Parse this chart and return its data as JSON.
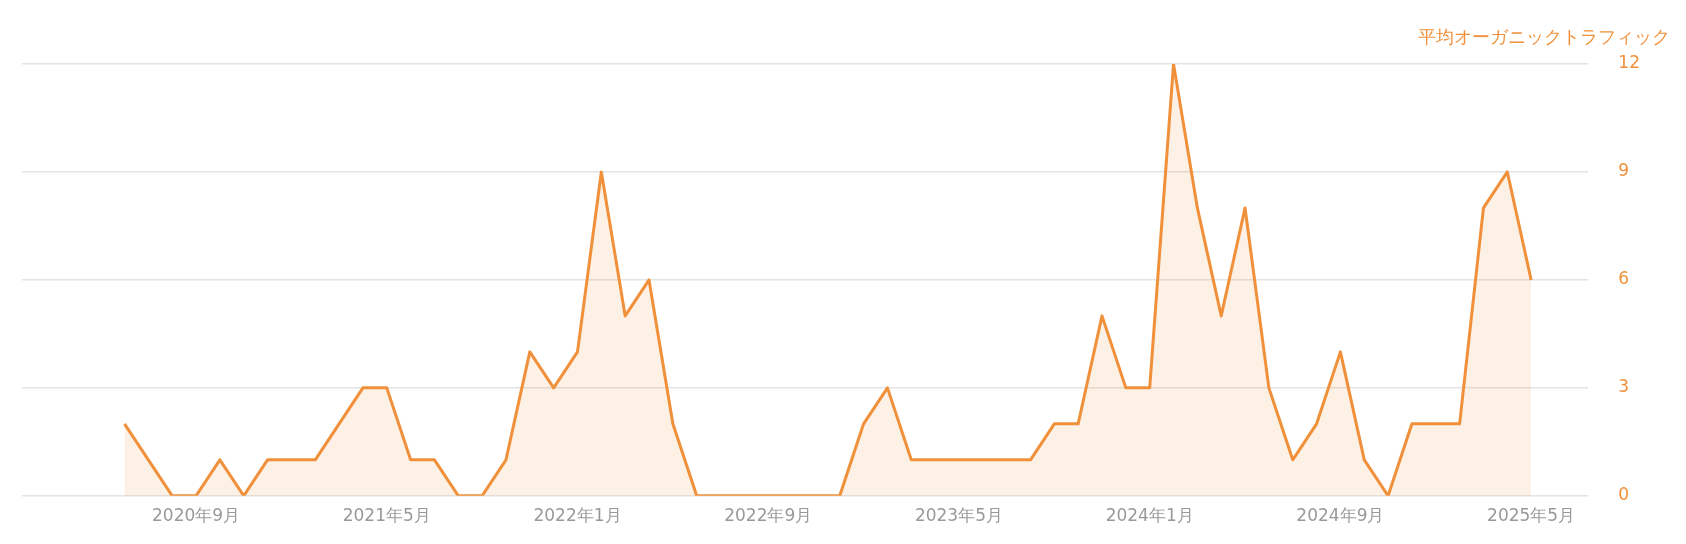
{
  "chart_data": {
    "type": "area",
    "ylabel": "平均オーガニックトラフィック",
    "categories": [
      null,
      null,
      null,
      "2020年9月",
      null,
      null,
      null,
      null,
      null,
      null,
      null,
      "2021年5月",
      null,
      null,
      null,
      null,
      null,
      null,
      null,
      "2022年1月",
      null,
      null,
      null,
      null,
      null,
      null,
      null,
      "2022年9月",
      null,
      null,
      null,
      null,
      null,
      null,
      null,
      "2023年5月",
      null,
      null,
      null,
      null,
      null,
      null,
      null,
      "2024年1月",
      null,
      null,
      null,
      null,
      null,
      null,
      null,
      "2024年9月",
      null,
      null,
      null,
      null,
      null,
      null,
      null,
      "2025年5月"
    ],
    "series": [
      {
        "color": "#f0903a",
        "values": [
          2,
          1,
          0,
          0,
          1,
          0,
          1,
          1,
          1,
          2,
          3,
          3,
          1,
          1,
          0,
          0,
          1,
          4,
          3,
          4,
          9,
          5,
          6,
          2,
          0,
          0,
          0,
          0,
          0,
          0,
          0,
          2,
          3,
          1,
          1,
          1,
          1,
          1,
          1,
          2,
          2,
          5,
          3,
          3,
          12,
          8,
          5,
          8,
          3,
          1,
          2,
          4,
          1,
          0,
          2,
          2,
          2,
          8,
          9,
          6
        ]
      }
    ],
    "ylim": [
      0,
      12
    ],
    "yticks": [
      0,
      3,
      6,
      9,
      12
    ],
    "grid": "y",
    "legend": false,
    "marker": "none"
  }
}
